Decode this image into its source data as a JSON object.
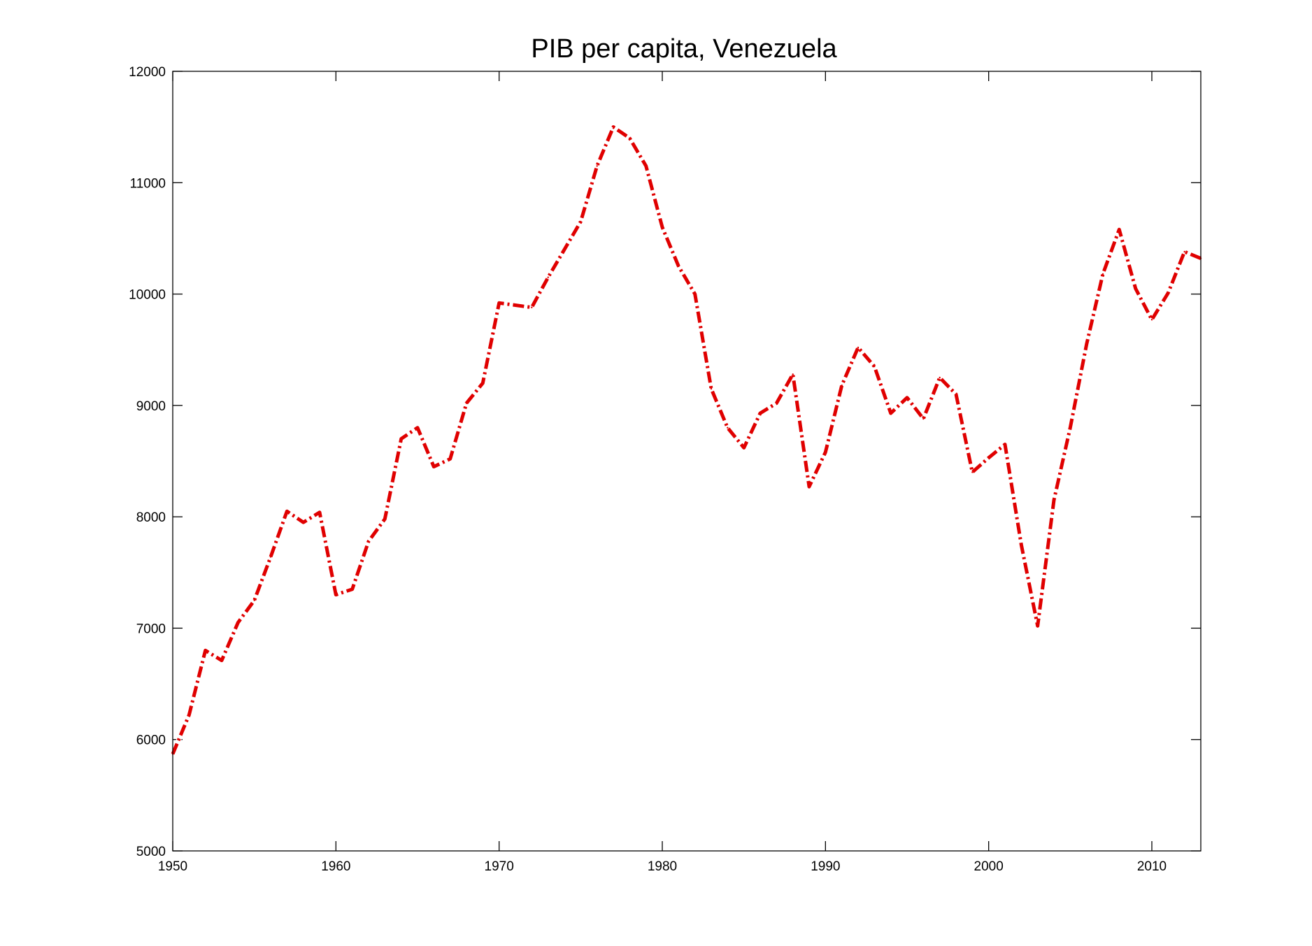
{
  "chart_data": {
    "type": "line",
    "title": "PIB per capita, Venezuela",
    "xlabel": "",
    "ylabel": "",
    "xlim": [
      1950,
      2013
    ],
    "ylim": [
      5000,
      12000
    ],
    "xticks": [
      1950,
      1960,
      1970,
      1980,
      1990,
      2000,
      2010
    ],
    "yticks": [
      5000,
      6000,
      7000,
      8000,
      9000,
      10000,
      11000,
      12000
    ],
    "grid": false,
    "line_color": "#e00000",
    "line_style": "dash-dot",
    "series": [
      {
        "x": [
          1950,
          1951,
          1952,
          1953,
          1954,
          1955,
          1956,
          1957,
          1958,
          1959,
          1960,
          1961,
          1962,
          1963,
          1964,
          1965,
          1966,
          1967,
          1968,
          1969,
          1970,
          1971,
          1972,
          1973,
          1974,
          1975,
          1976,
          1977,
          1978,
          1979,
          1980,
          1981,
          1982,
          1983,
          1984,
          1985,
          1986,
          1987,
          1988,
          1989,
          1990,
          1991,
          1992,
          1993,
          1994,
          1995,
          1996,
          1997,
          1998,
          1999,
          2000,
          2001,
          2002,
          2003,
          2004,
          2005,
          2006,
          2007,
          2008,
          2009,
          2010,
          2011,
          2012,
          2013
        ],
        "values": [
          5870,
          6220,
          6800,
          6710,
          7050,
          7250,
          7640,
          8050,
          7950,
          8040,
          7300,
          7350,
          7780,
          7980,
          8700,
          8800,
          8450,
          8520,
          9020,
          9200,
          9920,
          9900,
          9880,
          10150,
          10400,
          10650,
          11150,
          11500,
          11400,
          11150,
          10600,
          10250,
          10000,
          9150,
          8800,
          8620,
          8930,
          9020,
          9280,
          8270,
          8580,
          9180,
          9520,
          9350,
          8930,
          9070,
          8880,
          9250,
          9100,
          8400,
          8530,
          8650,
          7750,
          7020,
          8150,
          8800,
          9550,
          10180,
          10580,
          10050,
          9770,
          10010,
          10380,
          10320
        ]
      }
    ]
  }
}
